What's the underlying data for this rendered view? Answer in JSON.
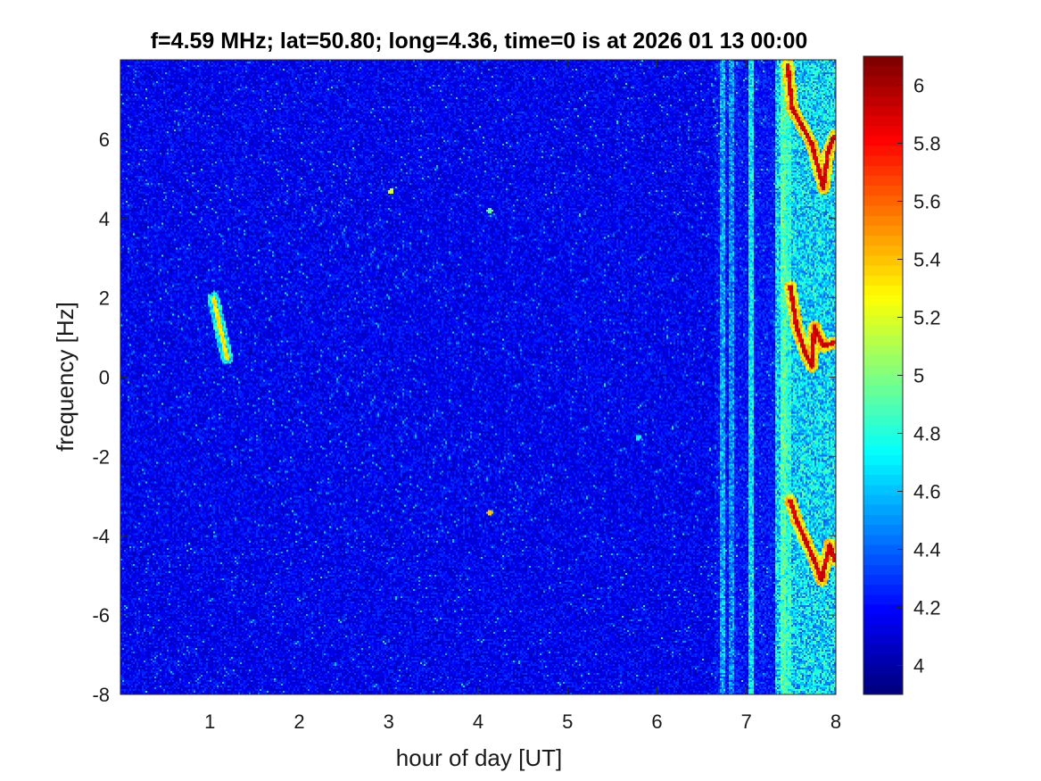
{
  "chart_data": {
    "type": "heatmap",
    "title": "f=4.59 MHz;  lat=50.80; long=4.36, time=0 is at 2026 01 13 00:00",
    "xlabel": "hour of day [UT]",
    "ylabel": "frequency [Hz]",
    "xlim": [
      0,
      8
    ],
    "ylim": [
      -8,
      8
    ],
    "x_ticks": [
      1,
      2,
      3,
      4,
      5,
      6,
      7,
      8
    ],
    "y_ticks": [
      -8,
      -6,
      -4,
      -2,
      0,
      2,
      4,
      6
    ],
    "x_tick_labels": [
      "1",
      "2",
      "3",
      "4",
      "5",
      "6",
      "7",
      "8"
    ],
    "y_tick_labels": [
      "-8",
      "-6",
      "-4",
      "-2",
      "0",
      "2",
      "4",
      "6"
    ],
    "colormap": "jet",
    "colorbar": {
      "clim": [
        3.9,
        6.1
      ],
      "ticks": [
        4,
        4.2,
        4.4,
        4.6,
        4.8,
        5,
        5.2,
        5.4,
        5.6,
        5.8,
        6
      ],
      "tick_labels": [
        "4",
        "4.2",
        "4.4",
        "4.6",
        "4.8",
        "5",
        "5.2",
        "5.4",
        "5.6",
        "5.8",
        "6"
      ]
    },
    "background_level": 4.15,
    "vertical_bands": [
      {
        "x": 6.72,
        "level": 4.55
      },
      {
        "x": 6.82,
        "level": 4.5
      },
      {
        "x": 7.05,
        "level": 4.7
      },
      {
        "x": 7.4,
        "level": 4.9
      },
      {
        "x": 7.45,
        "level": 4.8
      }
    ],
    "traces": [
      {
        "level": 5.4,
        "points": [
          [
            1.03,
            2.0
          ],
          [
            1.1,
            1.3
          ],
          [
            1.18,
            0.5
          ]
        ]
      },
      {
        "level": 6.0,
        "points": [
          [
            7.45,
            7.9
          ],
          [
            7.5,
            6.8
          ],
          [
            7.6,
            6.4
          ],
          [
            7.72,
            5.9
          ],
          [
            7.85,
            4.8
          ],
          [
            7.9,
            5.7
          ],
          [
            7.97,
            6.1
          ]
        ]
      },
      {
        "level": 6.0,
        "points": [
          [
            7.48,
            2.3
          ],
          [
            7.55,
            1.3
          ],
          [
            7.65,
            0.6
          ],
          [
            7.72,
            0.3
          ],
          [
            7.75,
            1.3
          ],
          [
            7.85,
            0.8
          ],
          [
            7.98,
            0.9
          ]
        ]
      },
      {
        "level": 6.0,
        "points": [
          [
            7.48,
            -3.1
          ],
          [
            7.55,
            -3.6
          ],
          [
            7.65,
            -4.1
          ],
          [
            7.75,
            -4.6
          ],
          [
            7.83,
            -5.1
          ],
          [
            7.92,
            -4.2
          ],
          [
            7.98,
            -4.6
          ]
        ]
      }
    ],
    "spots": [
      {
        "x": 3.02,
        "y": 4.7,
        "level": 5.2
      },
      {
        "x": 4.12,
        "y": -3.4,
        "level": 5.4
      },
      {
        "x": 4.12,
        "y": 4.2,
        "level": 4.9
      },
      {
        "x": 5.78,
        "y": -1.5,
        "level": 4.7
      }
    ]
  }
}
